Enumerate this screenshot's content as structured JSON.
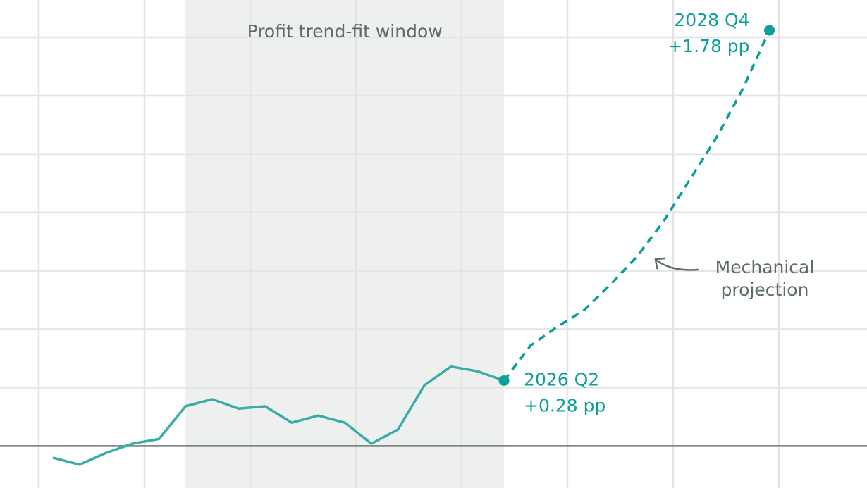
{
  "chart_data": {
    "type": "line",
    "categories": [
      null,
      null,
      null,
      null,
      null,
      null,
      null,
      null,
      null,
      null,
      null,
      null,
      null,
      null,
      null,
      null,
      null,
      null,
      null,
      null,
      null,
      null,
      null,
      null,
      null,
      null,
      null,
      null
    ],
    "series": [
      {
        "color": "#3aaca6",
        "dashed": false,
        "values": [
          -0.05,
          -0.08,
          -0.03,
          0.01,
          0.03,
          0.17,
          0.2,
          0.16,
          0.17,
          0.1,
          0.13,
          0.1,
          0.01,
          0.07,
          0.26,
          0.34,
          0.32,
          0.28,
          null,
          null,
          null,
          null,
          null,
          null,
          null,
          null,
          null,
          null
        ]
      },
      {
        "color": "#0b9f98",
        "dashed": true,
        "values": [
          null,
          null,
          null,
          null,
          null,
          null,
          null,
          null,
          null,
          null,
          null,
          null,
          null,
          null,
          null,
          null,
          null,
          0.28,
          0.43,
          0.51,
          0.58,
          0.69,
          0.81,
          0.96,
          1.14,
          1.32,
          1.53,
          1.78
        ],
        "value_labels": [
          null,
          null,
          null,
          null,
          null,
          null,
          null,
          null,
          null,
          null,
          null,
          null,
          null,
          null,
          null,
          null,
          null,
          "+0.28 pp",
          null,
          null,
          null,
          null,
          null,
          null,
          null,
          null,
          null,
          "+1.78 pp"
        ]
      }
    ],
    "point_labels": [
      {
        "index": 17,
        "series": 1,
        "text": "2026 Q2"
      },
      {
        "index": 27,
        "series": 1,
        "text": "2028 Q4"
      }
    ],
    "shaded_window": {
      "from": 5,
      "to": 17,
      "label": "Profit trend-fit window"
    },
    "callout": {
      "index": 22,
      "lines": [
        "Mechanical",
        "projection"
      ]
    },
    "ylim": [
      -0.18,
      1.91
    ],
    "yticks": [
      0,
      0.25,
      0.5,
      0.75,
      1,
      1.25,
      1.5,
      1.75
    ],
    "grid": true
  }
}
